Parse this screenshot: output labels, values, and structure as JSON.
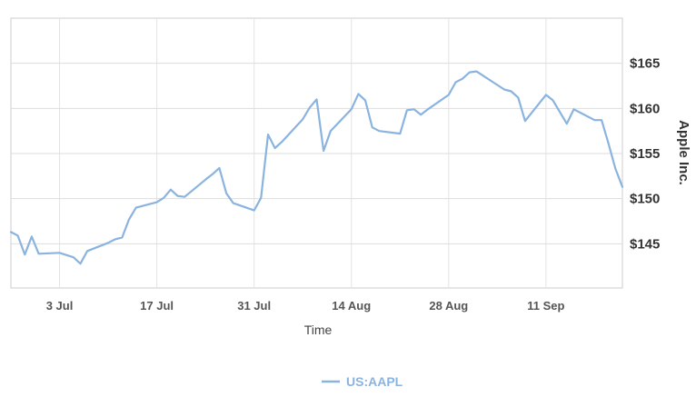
{
  "chart_data": {
    "type": "line",
    "title": "",
    "xlabel": "Time",
    "ylabel": "Apple Inc.",
    "x_tick_labels": [
      "3 Jul",
      "17 Jul",
      "31 Jul",
      "14 Aug",
      "28 Aug",
      "11 Sep"
    ],
    "x_tick_dates": [
      "2017-07-03",
      "2017-07-17",
      "2017-07-31",
      "2017-08-14",
      "2017-08-28",
      "2017-09-11"
    ],
    "y_tick_labels": [
      "$145",
      "$150",
      "$155",
      "$160",
      "$165"
    ],
    "y_tick_values": [
      145,
      150,
      155,
      160,
      165
    ],
    "ylim": [
      140.1,
      170
    ],
    "xlim": [
      "2017-06-26",
      "2017-09-22"
    ],
    "y_axis_position": "right",
    "grid": true,
    "legend_position": "bottom-center",
    "series": [
      {
        "name": "US:AAPL",
        "color": "#8ab4df",
        "x": [
          "2017-06-26",
          "2017-06-27",
          "2017-06-28",
          "2017-06-29",
          "2017-06-30",
          "2017-07-03",
          "2017-07-05",
          "2017-07-06",
          "2017-07-07",
          "2017-07-10",
          "2017-07-11",
          "2017-07-12",
          "2017-07-13",
          "2017-07-14",
          "2017-07-17",
          "2017-07-18",
          "2017-07-19",
          "2017-07-20",
          "2017-07-21",
          "2017-07-24",
          "2017-07-25",
          "2017-07-26",
          "2017-07-27",
          "2017-07-28",
          "2017-07-31",
          "2017-08-01",
          "2017-08-02",
          "2017-08-03",
          "2017-08-04",
          "2017-08-07",
          "2017-08-08",
          "2017-08-09",
          "2017-08-10",
          "2017-08-11",
          "2017-08-14",
          "2017-08-15",
          "2017-08-16",
          "2017-08-17",
          "2017-08-18",
          "2017-08-21",
          "2017-08-22",
          "2017-08-23",
          "2017-08-24",
          "2017-08-25",
          "2017-08-28",
          "2017-08-29",
          "2017-08-30",
          "2017-08-31",
          "2017-09-01",
          "2017-09-05",
          "2017-09-06",
          "2017-09-07",
          "2017-09-08",
          "2017-09-11",
          "2017-09-12",
          "2017-09-13",
          "2017-09-14",
          "2017-09-15",
          "2017-09-18",
          "2017-09-19",
          "2017-09-20",
          "2017-09-21",
          "2017-09-22"
        ],
        "values": [
          146.3,
          145.9,
          143.8,
          145.8,
          143.9,
          144.0,
          143.5,
          142.8,
          144.2,
          145.1,
          145.5,
          145.7,
          147.7,
          149.0,
          149.6,
          150.1,
          151.0,
          150.3,
          150.2,
          152.1,
          152.7,
          153.4,
          150.6,
          149.5,
          148.7,
          150.1,
          157.1,
          155.6,
          156.3,
          158.8,
          160.1,
          161.0,
          155.3,
          157.5,
          159.9,
          161.6,
          160.9,
          157.9,
          157.5,
          157.2,
          159.8,
          159.9,
          159.3,
          159.9,
          161.5,
          162.9,
          163.3,
          164.0,
          164.1,
          162.1,
          161.9,
          161.2,
          158.6,
          161.5,
          160.9,
          159.6,
          158.3,
          159.9,
          158.7,
          158.7,
          156.1,
          153.3,
          151.3
        ]
      }
    ]
  }
}
